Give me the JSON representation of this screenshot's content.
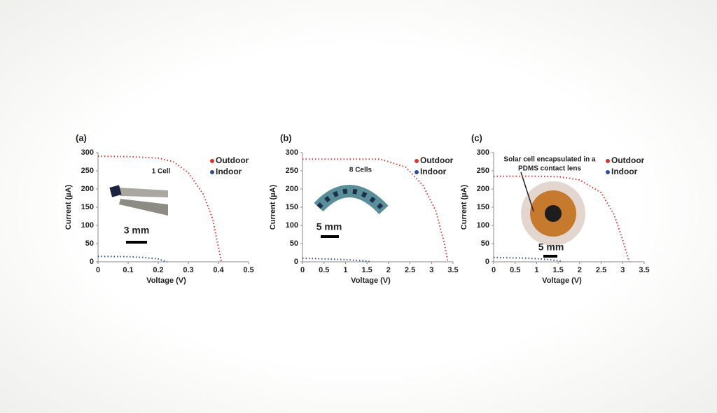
{
  "chart_data": [
    {
      "type": "line",
      "panel_label": "(a)",
      "xlabel": "Voltage (V)",
      "ylabel": "Current (µA)",
      "xlim": [
        0,
        0.5
      ],
      "xticks": [
        0,
        0.1,
        0.2,
        0.3,
        0.4,
        0.5
      ],
      "ylim": [
        0,
        300
      ],
      "yticks": [
        0,
        50,
        100,
        150,
        200,
        250,
        300
      ],
      "annotations": [
        "1 Cell",
        "3 mm"
      ],
      "series": [
        {
          "name": "Outdoor",
          "color": "#d9342b",
          "x": [
            0,
            0.1,
            0.2,
            0.25,
            0.3,
            0.35,
            0.38,
            0.4,
            0.41
          ],
          "values": [
            290,
            289,
            285,
            275,
            245,
            185,
            120,
            40,
            0
          ]
        },
        {
          "name": "Indoor",
          "color": "#2b4c9b",
          "x": [
            0,
            0.1,
            0.15,
            0.2,
            0.22,
            0.23
          ],
          "values": [
            15,
            14,
            12,
            8,
            2,
            0
          ]
        }
      ]
    },
    {
      "type": "line",
      "panel_label": "(b)",
      "xlabel": "Voltage (V)",
      "ylabel": "Current (µA)",
      "xlim": [
        0,
        3.5
      ],
      "xticks": [
        0,
        0.5,
        1,
        1.5,
        2,
        2.5,
        3,
        3.5
      ],
      "ylim": [
        0,
        300
      ],
      "yticks": [
        0,
        50,
        100,
        150,
        200,
        250,
        300
      ],
      "annotations": [
        "8 Cells",
        "5 mm"
      ],
      "series": [
        {
          "name": "Outdoor",
          "color": "#d9342b",
          "x": [
            0,
            1,
            1.8,
            2,
            2.4,
            2.8,
            3.1,
            3.3,
            3.38
          ],
          "values": [
            282,
            282,
            282,
            275,
            260,
            210,
            140,
            50,
            0
          ]
        },
        {
          "name": "Indoor",
          "color": "#2b4c9b",
          "x": [
            0,
            0.5,
            1,
            1.4,
            1.6
          ],
          "values": [
            10,
            8,
            6,
            3,
            0
          ]
        }
      ]
    },
    {
      "type": "line",
      "panel_label": "(c)",
      "xlabel": "Voltage (V)",
      "ylabel": "Current (µA)",
      "xlim": [
        0,
        3.5
      ],
      "xticks": [
        0,
        0.5,
        1,
        1.5,
        2,
        2.5,
        3,
        3.5
      ],
      "ylim": [
        0,
        300
      ],
      "yticks": [
        0,
        50,
        100,
        150,
        200,
        250,
        300
      ],
      "annotations": [
        "Solar cell encapsulated in a",
        "PDMS contact lens",
        "5 mm"
      ],
      "series": [
        {
          "name": "Outdoor",
          "color": "#d9342b",
          "x": [
            0,
            1,
            1.5,
            2,
            2.5,
            2.8,
            3,
            3.15
          ],
          "values": [
            235,
            235,
            234,
            225,
            190,
            130,
            60,
            0
          ]
        },
        {
          "name": "Indoor",
          "color": "#2b4c9b",
          "x": [
            0,
            0.8,
            1.2,
            1.5,
            1.6
          ],
          "values": [
            12,
            10,
            7,
            3,
            0
          ]
        }
      ]
    }
  ]
}
